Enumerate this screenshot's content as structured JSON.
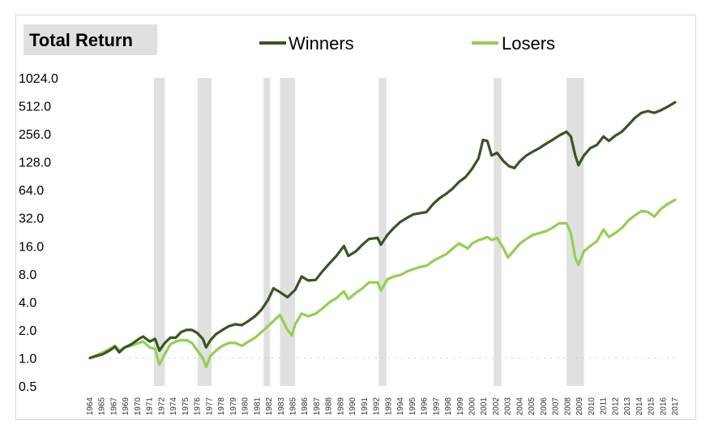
{
  "chart_data": {
    "type": "line",
    "title": "Total Return",
    "y_scale": "log2",
    "ylim": [
      0.5,
      1024
    ],
    "y_ticks": [
      "1024.0",
      "512.0",
      "256.0",
      "128.0",
      "64.0",
      "32.0",
      "16.0",
      "8.0",
      "4.0",
      "2.0",
      "1.0",
      "0.5"
    ],
    "y_tick_values": [
      1024,
      512,
      256,
      128,
      64,
      32,
      16,
      8,
      4,
      2,
      1,
      0.5
    ],
    "xlim": [
      1964,
      2017.9
    ],
    "x_ticks": [
      "1964",
      "1965",
      "1967",
      "1969",
      "1970",
      "1971",
      "1972",
      "1974",
      "1975",
      "1976",
      "1977",
      "1978",
      "1979",
      "1980",
      "1981",
      "1982",
      "1983",
      "1985",
      "1986",
      "1987",
      "1988",
      "1989",
      "1990",
      "1991",
      "1992",
      "1993",
      "1994",
      "1995",
      "1996",
      "1997",
      "1998",
      "1999",
      "2000",
      "2001",
      "2002",
      "2003",
      "2004",
      "2005",
      "2006",
      "2007",
      "2008",
      "2009",
      "2010",
      "2011",
      "2012",
      "2013",
      "2014",
      "2015",
      "2016",
      "2017"
    ],
    "legend_position": "top",
    "shaded_periods": [
      [
        1969.9,
        1970.9
      ],
      [
        1973.9,
        1975.2
      ],
      [
        1980.0,
        1980.6
      ],
      [
        1981.5,
        1982.9
      ],
      [
        1990.6,
        1991.3
      ],
      [
        2001.2,
        2001.9
      ],
      [
        2007.9,
        2009.5
      ]
    ],
    "shade_color": "#e0e0e0",
    "series": [
      {
        "name": "Winners",
        "color": "#375623",
        "points": [
          [
            1964.0,
            1.0
          ],
          [
            1964.6,
            1.05
          ],
          [
            1965.2,
            1.1
          ],
          [
            1965.8,
            1.2
          ],
          [
            1966.3,
            1.32
          ],
          [
            1966.7,
            1.15
          ],
          [
            1967.2,
            1.3
          ],
          [
            1967.8,
            1.4
          ],
          [
            1968.5,
            1.6
          ],
          [
            1968.9,
            1.7
          ],
          [
            1969.5,
            1.5
          ],
          [
            1970.0,
            1.6
          ],
          [
            1970.4,
            1.2
          ],
          [
            1970.9,
            1.45
          ],
          [
            1971.4,
            1.65
          ],
          [
            1971.9,
            1.65
          ],
          [
            1972.4,
            1.9
          ],
          [
            1972.9,
            2.0
          ],
          [
            1973.4,
            2.0
          ],
          [
            1973.9,
            1.85
          ],
          [
            1974.4,
            1.6
          ],
          [
            1974.7,
            1.3
          ],
          [
            1975.1,
            1.55
          ],
          [
            1975.6,
            1.8
          ],
          [
            1976.2,
            2.0
          ],
          [
            1976.8,
            2.2
          ],
          [
            1977.4,
            2.3
          ],
          [
            1978.0,
            2.25
          ],
          [
            1978.6,
            2.5
          ],
          [
            1979.2,
            2.8
          ],
          [
            1979.8,
            3.3
          ],
          [
            1980.4,
            4.2
          ],
          [
            1980.9,
            5.6
          ],
          [
            1981.5,
            5.1
          ],
          [
            1982.2,
            4.5
          ],
          [
            1982.9,
            5.4
          ],
          [
            1983.5,
            7.5
          ],
          [
            1984.1,
            6.8
          ],
          [
            1984.8,
            6.9
          ],
          [
            1985.4,
            8.5
          ],
          [
            1986.1,
            10.5
          ],
          [
            1986.7,
            12.5
          ],
          [
            1987.4,
            16.0
          ],
          [
            1987.8,
            12.5
          ],
          [
            1988.5,
            14.0
          ],
          [
            1989.1,
            16.5
          ],
          [
            1989.7,
            19.0
          ],
          [
            1990.5,
            19.5
          ],
          [
            1990.8,
            16.5
          ],
          [
            1991.4,
            21.0
          ],
          [
            1992.0,
            25.0
          ],
          [
            1992.6,
            29.0
          ],
          [
            1993.2,
            32.0
          ],
          [
            1993.8,
            35.0
          ],
          [
            1994.4,
            36.0
          ],
          [
            1995.0,
            37.0
          ],
          [
            1995.6,
            45.0
          ],
          [
            1996.2,
            52.0
          ],
          [
            1996.8,
            58.0
          ],
          [
            1997.4,
            66.0
          ],
          [
            1998.0,
            78.0
          ],
          [
            1998.6,
            88.0
          ],
          [
            1999.2,
            108.0
          ],
          [
            1999.8,
            140.0
          ],
          [
            2000.2,
            220.0
          ],
          [
            2000.6,
            215.0
          ],
          [
            2001.0,
            150.0
          ],
          [
            2001.5,
            160.0
          ],
          [
            2002.1,
            130.0
          ],
          [
            2002.6,
            115.0
          ],
          [
            2003.1,
            110.0
          ],
          [
            2003.6,
            130.0
          ],
          [
            2004.2,
            150.0
          ],
          [
            2004.8,
            165.0
          ],
          [
            2005.4,
            180.0
          ],
          [
            2006.0,
            200.0
          ],
          [
            2006.6,
            220.0
          ],
          [
            2007.2,
            245.0
          ],
          [
            2007.9,
            270.0
          ],
          [
            2008.3,
            240.0
          ],
          [
            2008.7,
            150.0
          ],
          [
            2009.0,
            118.0
          ],
          [
            2009.5,
            150.0
          ],
          [
            2010.1,
            180.0
          ],
          [
            2010.7,
            195.0
          ],
          [
            2011.3,
            240.0
          ],
          [
            2011.8,
            215.0
          ],
          [
            2012.4,
            245.0
          ],
          [
            2013.0,
            270.0
          ],
          [
            2013.6,
            320.0
          ],
          [
            2014.2,
            380.0
          ],
          [
            2014.8,
            430.0
          ],
          [
            2015.4,
            450.0
          ],
          [
            2016.0,
            430.0
          ],
          [
            2016.6,
            460.0
          ],
          [
            2017.2,
            500.0
          ],
          [
            2017.9,
            560.0
          ]
        ]
      },
      {
        "name": "Losers",
        "color": "#92d050",
        "points": [
          [
            1964.0,
            1.0
          ],
          [
            1964.6,
            1.07
          ],
          [
            1965.2,
            1.15
          ],
          [
            1965.8,
            1.25
          ],
          [
            1966.3,
            1.35
          ],
          [
            1966.7,
            1.2
          ],
          [
            1967.2,
            1.3
          ],
          [
            1967.8,
            1.35
          ],
          [
            1968.5,
            1.45
          ],
          [
            1968.9,
            1.5
          ],
          [
            1969.5,
            1.3
          ],
          [
            1970.0,
            1.25
          ],
          [
            1970.4,
            0.85
          ],
          [
            1970.9,
            1.1
          ],
          [
            1971.4,
            1.4
          ],
          [
            1971.9,
            1.5
          ],
          [
            1972.4,
            1.55
          ],
          [
            1972.9,
            1.55
          ],
          [
            1973.4,
            1.45
          ],
          [
            1973.9,
            1.2
          ],
          [
            1974.4,
            1.0
          ],
          [
            1974.7,
            0.8
          ],
          [
            1975.1,
            1.05
          ],
          [
            1975.6,
            1.2
          ],
          [
            1976.2,
            1.35
          ],
          [
            1976.8,
            1.45
          ],
          [
            1977.4,
            1.45
          ],
          [
            1978.0,
            1.35
          ],
          [
            1978.6,
            1.5
          ],
          [
            1979.2,
            1.65
          ],
          [
            1979.8,
            1.9
          ],
          [
            1980.4,
            2.2
          ],
          [
            1980.9,
            2.5
          ],
          [
            1981.5,
            2.9
          ],
          [
            1982.2,
            2.0
          ],
          [
            1982.6,
            1.75
          ],
          [
            1982.9,
            2.3
          ],
          [
            1983.5,
            3.0
          ],
          [
            1984.1,
            2.8
          ],
          [
            1984.8,
            3.0
          ],
          [
            1985.4,
            3.4
          ],
          [
            1986.1,
            4.0
          ],
          [
            1986.7,
            4.4
          ],
          [
            1987.4,
            5.2
          ],
          [
            1987.8,
            4.3
          ],
          [
            1988.5,
            5.0
          ],
          [
            1989.1,
            5.6
          ],
          [
            1989.7,
            6.5
          ],
          [
            1990.5,
            6.5
          ],
          [
            1990.8,
            5.3
          ],
          [
            1991.4,
            7.0
          ],
          [
            1992.0,
            7.5
          ],
          [
            1992.6,
            7.8
          ],
          [
            1993.2,
            8.5
          ],
          [
            1993.8,
            9.0
          ],
          [
            1994.4,
            9.5
          ],
          [
            1995.0,
            9.8
          ],
          [
            1995.6,
            11.0
          ],
          [
            1996.2,
            12.0
          ],
          [
            1996.8,
            13.0
          ],
          [
            1997.4,
            15.0
          ],
          [
            1998.0,
            17.0
          ],
          [
            1998.4,
            16.0
          ],
          [
            1998.8,
            15.0
          ],
          [
            1999.2,
            17.0
          ],
          [
            1999.8,
            18.5
          ],
          [
            2000.2,
            19.0
          ],
          [
            2000.6,
            20.0
          ],
          [
            2001.0,
            18.5
          ],
          [
            2001.5,
            19.5
          ],
          [
            2002.1,
            15.0
          ],
          [
            2002.5,
            12.0
          ],
          [
            2003.0,
            14.0
          ],
          [
            2003.6,
            17.0
          ],
          [
            2004.2,
            19.0
          ],
          [
            2004.8,
            21.0
          ],
          [
            2005.4,
            22.0
          ],
          [
            2006.0,
            23.0
          ],
          [
            2006.6,
            25.0
          ],
          [
            2007.2,
            28.0
          ],
          [
            2007.9,
            28.0
          ],
          [
            2008.3,
            22.0
          ],
          [
            2008.7,
            12.0
          ],
          [
            2009.0,
            10.0
          ],
          [
            2009.5,
            14.0
          ],
          [
            2010.1,
            16.0
          ],
          [
            2010.7,
            18.0
          ],
          [
            2011.3,
            24.0
          ],
          [
            2011.8,
            20.0
          ],
          [
            2012.4,
            22.0
          ],
          [
            2013.0,
            25.0
          ],
          [
            2013.6,
            30.0
          ],
          [
            2014.2,
            34.0
          ],
          [
            2014.8,
            38.0
          ],
          [
            2015.4,
            37.0
          ],
          [
            2016.0,
            33.0
          ],
          [
            2016.6,
            40.0
          ],
          [
            2017.2,
            45.0
          ],
          [
            2017.9,
            50.0
          ]
        ]
      }
    ]
  }
}
